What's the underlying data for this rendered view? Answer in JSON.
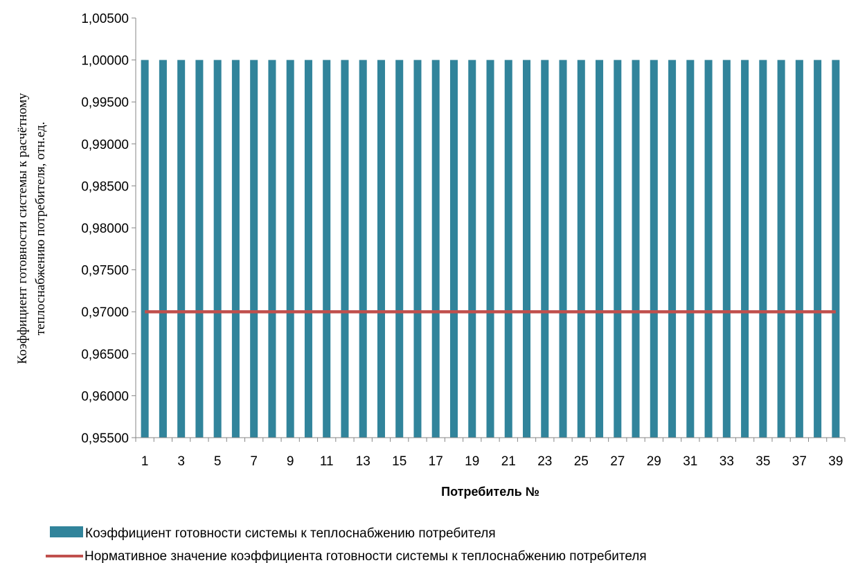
{
  "chart_data": {
    "type": "bar",
    "categories": [
      "1",
      "2",
      "3",
      "4",
      "5",
      "6",
      "7",
      "8",
      "9",
      "10",
      "11",
      "12",
      "13",
      "14",
      "15",
      "16",
      "17",
      "18",
      "19",
      "20",
      "21",
      "22",
      "23",
      "24",
      "25",
      "26",
      "27",
      "28",
      "29",
      "30",
      "31",
      "32",
      "33",
      "34",
      "35",
      "36",
      "37",
      "38",
      "39"
    ],
    "x_tick_labels": [
      "1",
      "3",
      "5",
      "7",
      "9",
      "11",
      "13",
      "15",
      "17",
      "19",
      "21",
      "23",
      "25",
      "27",
      "29",
      "31",
      "33",
      "35",
      "37",
      "39"
    ],
    "series": [
      {
        "name": "Коэффициент готовности системы к теплоснабжению потребителя",
        "type": "bar",
        "color": "#31849b",
        "values": [
          1,
          1,
          1,
          1,
          1,
          1,
          1,
          1,
          1,
          1,
          1,
          1,
          1,
          1,
          1,
          1,
          1,
          1,
          1,
          1,
          1,
          1,
          1,
          1,
          1,
          1,
          1,
          1,
          1,
          1,
          1,
          1,
          1,
          1,
          1,
          1,
          1,
          1,
          1
        ]
      },
      {
        "name": "Нормативное значение коэффициента готовности системы к теплоснабжению потребителя",
        "type": "line",
        "color": "#c0504d",
        "values": [
          0.97,
          0.97,
          0.97,
          0.97,
          0.97,
          0.97,
          0.97,
          0.97,
          0.97,
          0.97,
          0.97,
          0.97,
          0.97,
          0.97,
          0.97,
          0.97,
          0.97,
          0.97,
          0.97,
          0.97,
          0.97,
          0.97,
          0.97,
          0.97,
          0.97,
          0.97,
          0.97,
          0.97,
          0.97,
          0.97,
          0.97,
          0.97,
          0.97,
          0.97,
          0.97,
          0.97,
          0.97,
          0.97,
          0.97
        ]
      }
    ],
    "y_ticks": [
      "0,95500",
      "0,96000",
      "0,96500",
      "0,97000",
      "0,97500",
      "0,98000",
      "0,98500",
      "0,99000",
      "0,99500",
      "1,00000",
      "1,00500"
    ],
    "ylim": [
      0.955,
      1.005
    ],
    "xlabel": "Потребитель №",
    "ylabel_line1": "Коэффициент готовности системы к расчётному",
    "ylabel_line2": "теплоснабжению потребителя, отн.ед.",
    "legend_position": "bottom",
    "grid": false
  }
}
